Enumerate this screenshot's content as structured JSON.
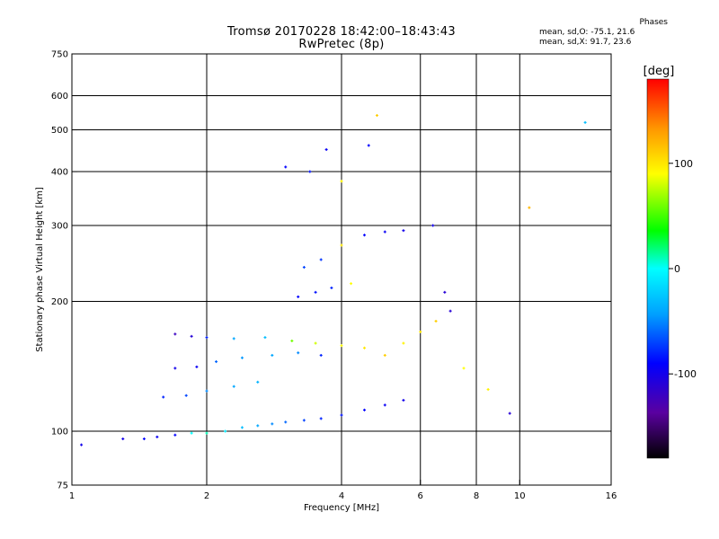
{
  "header": {
    "title_line1": "Tromsø 20170228 18:42:00–18:43:43",
    "title_line2": "RwPretec (8p)"
  },
  "stats": {
    "heading": "Phases",
    "line_o": "mean, sd,O: -75.1, 21.6",
    "line_x": "mean, sd,X:  91.7, 23.6"
  },
  "chart_data": {
    "type": "scatter",
    "xlabel": "Frequency [MHz]",
    "ylabel": "Stationary phase Virtual Height [km]",
    "x_scale": "log",
    "y_scale": "log",
    "xlim": [
      1,
      16
    ],
    "ylim": [
      75,
      750
    ],
    "x_ticks": [
      1,
      2,
      4,
      6,
      8,
      10,
      16
    ],
    "y_ticks": [
      75,
      100,
      200,
      300,
      400,
      500,
      600,
      750
    ],
    "x_grid": [
      2,
      4,
      6,
      8,
      10
    ],
    "y_grid": [
      100,
      200,
      300,
      400,
      500,
      600
    ],
    "grid": true,
    "colorbar": {
      "label": "[deg]",
      "range": [
        -180,
        180
      ],
      "ticks": [
        100,
        0,
        -100
      ],
      "colors": [
        "#000000",
        "#5a00a0",
        "#0000ff",
        "#00a0ff",
        "#00ffff",
        "#00ff00",
        "#ffff00",
        "#ff9600",
        "#ff0000"
      ]
    },
    "series": [
      {
        "values": [
          {
            "x": 1.05,
            "y": 93,
            "phase": -100
          },
          {
            "x": 1.3,
            "y": 96,
            "phase": -100
          },
          {
            "x": 1.45,
            "y": 96,
            "phase": -90
          },
          {
            "x": 1.55,
            "y": 97,
            "phase": -95
          },
          {
            "x": 1.7,
            "y": 98,
            "phase": -90
          },
          {
            "x": 1.85,
            "y": 99,
            "phase": 0
          },
          {
            "x": 2.0,
            "y": 99,
            "phase": 10
          },
          {
            "x": 2.2,
            "y": 100,
            "phase": -10
          },
          {
            "x": 2.4,
            "y": 102,
            "phase": -30
          },
          {
            "x": 2.6,
            "y": 103,
            "phase": -40
          },
          {
            "x": 2.8,
            "y": 104,
            "phase": -50
          },
          {
            "x": 3.0,
            "y": 105,
            "phase": -60
          },
          {
            "x": 3.3,
            "y": 106,
            "phase": -70
          },
          {
            "x": 3.6,
            "y": 107,
            "phase": -80
          },
          {
            "x": 4.0,
            "y": 109,
            "phase": -85
          },
          {
            "x": 4.5,
            "y": 112,
            "phase": -90
          },
          {
            "x": 5.0,
            "y": 115,
            "phase": -95
          },
          {
            "x": 5.5,
            "y": 118,
            "phase": -100
          },
          {
            "x": 1.6,
            "y": 120,
            "phase": -80
          },
          {
            "x": 1.8,
            "y": 121,
            "phase": -70
          },
          {
            "x": 2.0,
            "y": 124,
            "phase": -50
          },
          {
            "x": 2.3,
            "y": 127,
            "phase": -40
          },
          {
            "x": 2.6,
            "y": 130,
            "phase": -35
          },
          {
            "x": 1.7,
            "y": 140,
            "phase": -100
          },
          {
            "x": 1.9,
            "y": 141,
            "phase": -95
          },
          {
            "x": 2.1,
            "y": 145,
            "phase": -60
          },
          {
            "x": 2.4,
            "y": 148,
            "phase": -45
          },
          {
            "x": 2.8,
            "y": 150,
            "phase": -40
          },
          {
            "x": 3.2,
            "y": 152,
            "phase": -50
          },
          {
            "x": 3.6,
            "y": 150,
            "phase": -80
          },
          {
            "x": 1.7,
            "y": 168,
            "phase": -120
          },
          {
            "x": 1.85,
            "y": 166,
            "phase": -110
          },
          {
            "x": 2.0,
            "y": 165,
            "phase": -80
          },
          {
            "x": 2.3,
            "y": 164,
            "phase": -40
          },
          {
            "x": 2.7,
            "y": 165,
            "phase": -30
          },
          {
            "x": 3.1,
            "y": 162,
            "phase": 60
          },
          {
            "x": 3.5,
            "y": 160,
            "phase": 80
          },
          {
            "x": 4.0,
            "y": 158,
            "phase": 90
          },
          {
            "x": 4.5,
            "y": 156,
            "phase": 100
          },
          {
            "x": 5.0,
            "y": 150,
            "phase": 110
          },
          {
            "x": 5.5,
            "y": 160,
            "phase": 95
          },
          {
            "x": 6.0,
            "y": 170,
            "phase": 100
          },
          {
            "x": 6.5,
            "y": 180,
            "phase": 110
          },
          {
            "x": 7.0,
            "y": 190,
            "phase": -110
          },
          {
            "x": 3.2,
            "y": 205,
            "phase": -90
          },
          {
            "x": 3.5,
            "y": 210,
            "phase": -85
          },
          {
            "x": 3.8,
            "y": 215,
            "phase": -80
          },
          {
            "x": 4.2,
            "y": 220,
            "phase": 90
          },
          {
            "x": 3.3,
            "y": 240,
            "phase": -70
          },
          {
            "x": 3.6,
            "y": 250,
            "phase": -75
          },
          {
            "x": 4.0,
            "y": 270,
            "phase": 100
          },
          {
            "x": 4.5,
            "y": 285,
            "phase": -90
          },
          {
            "x": 5.0,
            "y": 290,
            "phase": -95
          },
          {
            "x": 5.5,
            "y": 292,
            "phase": -100
          },
          {
            "x": 3.0,
            "y": 410,
            "phase": -90
          },
          {
            "x": 3.4,
            "y": 400,
            "phase": -85
          },
          {
            "x": 3.7,
            "y": 450,
            "phase": -95
          },
          {
            "x": 4.0,
            "y": 380,
            "phase": 95
          },
          {
            "x": 4.6,
            "y": 460,
            "phase": -90
          },
          {
            "x": 4.8,
            "y": 540,
            "phase": 110
          },
          {
            "x": 6.4,
            "y": 300,
            "phase": -100
          },
          {
            "x": 6.8,
            "y": 210,
            "phase": -110
          },
          {
            "x": 7.5,
            "y": 140,
            "phase": 90
          },
          {
            "x": 8.5,
            "y": 125,
            "phase": 95
          },
          {
            "x": 9.5,
            "y": 110,
            "phase": -110
          },
          {
            "x": 10.5,
            "y": 330,
            "phase": 120
          },
          {
            "x": 14.0,
            "y": 520,
            "phase": -30
          }
        ]
      }
    ]
  }
}
